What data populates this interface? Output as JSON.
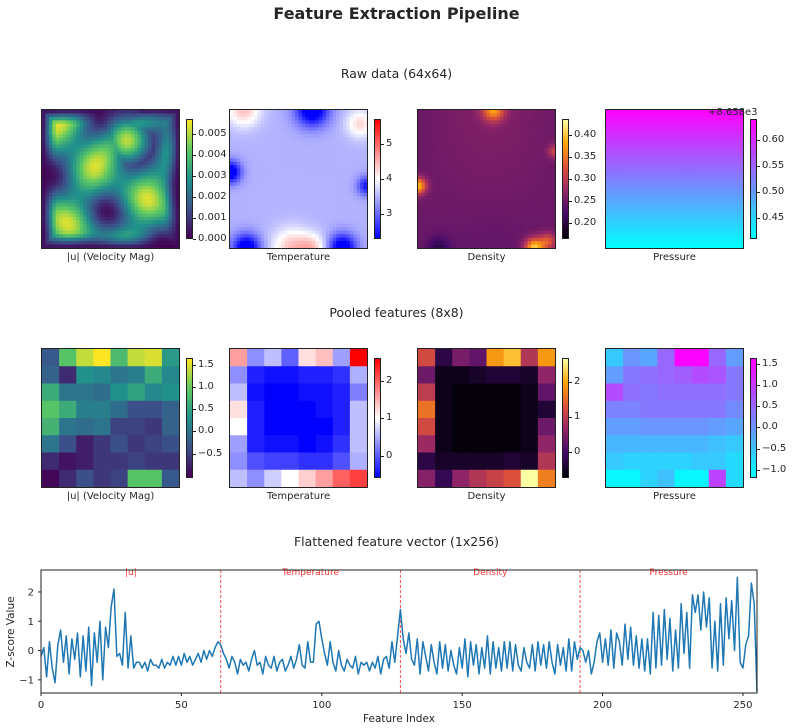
{
  "title": "Feature Extraction Pipeline",
  "section_titles": {
    "raw": "Raw data (64x64)",
    "pooled": "Pooled features (8x8)",
    "flat": "Flattened feature vector (1x256)"
  },
  "colors": {
    "viridis": [
      "#440154",
      "#3b528b",
      "#21918c",
      "#5ec962",
      "#fde725"
    ],
    "bwr": [
      "#0000ff",
      "#ffffff",
      "#ff0000"
    ],
    "inferno": [
      "#000004",
      "#420a68",
      "#932667",
      "#dd513a",
      "#fca50a",
      "#fcffa4"
    ],
    "cool": [
      "#00ffff",
      "#ff00ff"
    ],
    "line": "#1f77b4",
    "divider": "#ff4d4d"
  },
  "chart_data": [
    {
      "type": "heatmap",
      "row": "raw",
      "caption": "|u| (Velocity Mag)",
      "colormap": "viridis",
      "range": [
        0,
        0.0057
      ],
      "colorbar_ticks": [
        0.0,
        0.001,
        0.002,
        0.003,
        0.004,
        0.005
      ],
      "colorbar_tick_labels": [
        "0.000",
        "0.001",
        "0.002",
        "0.003",
        "0.004",
        "0.005"
      ]
    },
    {
      "type": "heatmap",
      "row": "raw",
      "caption": "Temperature",
      "colormap": "bwr",
      "range": [
        2.3,
        5.7
      ],
      "colorbar_ticks": [
        3,
        4,
        5
      ],
      "colorbar_tick_labels": [
        "3",
        "4",
        "5"
      ]
    },
    {
      "type": "heatmap",
      "row": "raw",
      "caption": "Density",
      "colormap": "inferno",
      "range": [
        0.165,
        0.435
      ],
      "colorbar_ticks": [
        0.2,
        0.25,
        0.3,
        0.35,
        0.4
      ],
      "colorbar_tick_labels": [
        "0.20",
        "0.25",
        "0.30",
        "0.35",
        "0.40"
      ]
    },
    {
      "type": "heatmap",
      "row": "raw",
      "caption": "Pressure",
      "colormap": "cool",
      "range": [
        0.41,
        0.64
      ],
      "colorbar_ticks": [
        0.45,
        0.5,
        0.55,
        0.6
      ],
      "colorbar_tick_labels": [
        "0.45",
        "0.50",
        "0.55",
        "0.60"
      ],
      "colorbar_offset": "+8.658e3"
    },
    {
      "type": "heatmap",
      "row": "pooled",
      "caption": "|u| (Velocity Mag)",
      "colormap": "viridis",
      "range": [
        -1.05,
        1.65
      ],
      "colorbar_ticks": [
        -0.5,
        0.0,
        0.5,
        1.0,
        1.5
      ],
      "colorbar_tick_labels": [
        "−0.5",
        "0.0",
        "0.5",
        "1.0",
        "1.5"
      ],
      "values": [
        [
          -0.3,
          0.9,
          1.4,
          1.7,
          0.8,
          1.4,
          1.5,
          0.4
        ],
        [
          -0.2,
          -0.7,
          0.3,
          0.2,
          0.0,
          0.1,
          0.6,
          0.2
        ],
        [
          0.6,
          0.0,
          0.0,
          -0.1,
          0.3,
          0.5,
          0.2,
          0.3
        ],
        [
          0.9,
          0.6,
          0.1,
          0.1,
          -0.1,
          -0.4,
          -0.4,
          -0.2
        ],
        [
          0.7,
          0.0,
          -0.1,
          0.0,
          -0.5,
          -0.5,
          -0.6,
          -0.2
        ],
        [
          0.0,
          -0.4,
          -0.8,
          -0.6,
          -0.4,
          -0.6,
          -0.5,
          -0.4
        ],
        [
          -0.7,
          -0.9,
          -0.8,
          -0.6,
          -0.6,
          -0.5,
          -0.6,
          -0.6
        ],
        [
          -1.0,
          -0.7,
          -0.4,
          -0.6,
          -0.5,
          0.9,
          0.9,
          -0.3
        ]
      ]
    },
    {
      "type": "heatmap",
      "row": "pooled",
      "caption": "Temperature",
      "colormap": "bwr",
      "range": [
        -0.6,
        2.6
      ],
      "colorbar_ticks": [
        0,
        1,
        2
      ],
      "colorbar_tick_labels": [
        "0",
        "1",
        "2"
      ],
      "values": [
        [
          1.6,
          0.3,
          0.6,
          0.0,
          1.2,
          1.4,
          0.4,
          2.6
        ],
        [
          0.3,
          -0.4,
          -0.5,
          -0.5,
          -0.4,
          -0.4,
          -0.3,
          0.5
        ],
        [
          0.6,
          -0.5,
          -0.6,
          -0.6,
          -0.5,
          -0.5,
          -0.4,
          0.2
        ],
        [
          1.2,
          -0.4,
          -0.6,
          -0.6,
          -0.6,
          -0.5,
          -0.4,
          0.6
        ],
        [
          1.0,
          -0.4,
          -0.6,
          -0.6,
          -0.6,
          -0.6,
          -0.4,
          0.6
        ],
        [
          0.4,
          -0.4,
          -0.5,
          -0.5,
          -0.6,
          -0.5,
          -0.3,
          0.6
        ],
        [
          0.3,
          -0.1,
          -0.2,
          -0.2,
          -0.3,
          -0.3,
          -0.1,
          0.5
        ],
        [
          0.6,
          0.3,
          0.7,
          1.0,
          1.3,
          1.6,
          2.0,
          2.2
        ]
      ]
    },
    {
      "type": "heatmap",
      "row": "pooled",
      "caption": "Density",
      "colormap": "inferno",
      "range": [
        -0.75,
        2.7
      ],
      "colorbar_ticks": [
        0,
        1,
        2
      ],
      "colorbar_tick_labels": [
        "0",
        "1",
        "2"
      ],
      "values": [
        [
          1.2,
          -0.3,
          0.4,
          0.2,
          1.9,
          2.2,
          0.9,
          1.9
        ],
        [
          0.3,
          -0.6,
          -0.6,
          -0.5,
          -0.4,
          -0.4,
          -0.5,
          0.6
        ],
        [
          1.0,
          -0.6,
          -0.7,
          -0.7,
          -0.7,
          -0.7,
          -0.6,
          0.2
        ],
        [
          1.6,
          -0.6,
          -0.7,
          -0.7,
          -0.7,
          -0.7,
          -0.6,
          -0.4
        ],
        [
          1.2,
          -0.6,
          -0.7,
          -0.7,
          -0.7,
          -0.7,
          -0.6,
          0.3
        ],
        [
          0.7,
          -0.6,
          -0.7,
          -0.7,
          -0.7,
          -0.7,
          -0.6,
          0.6
        ],
        [
          -0.3,
          -0.5,
          -0.5,
          -0.5,
          -0.5,
          -0.4,
          -0.5,
          0.9
        ],
        [
          0.5,
          -0.2,
          0.6,
          0.9,
          1.1,
          1.3,
          2.7,
          1.7
        ]
      ]
    },
    {
      "type": "heatmap",
      "row": "pooled",
      "caption": "Pressure",
      "colormap": "cool",
      "range": [
        -1.2,
        1.65
      ],
      "colorbar_ticks": [
        -1.0,
        -0.5,
        0.0,
        0.5,
        1.0,
        1.5
      ],
      "colorbar_tick_labels": [
        "−1.0",
        "−0.5",
        "0.0",
        "0.5",
        "1.0",
        "1.5"
      ],
      "values": [
        [
          -0.6,
          0.0,
          -0.2,
          0.5,
          1.6,
          1.6,
          0.5,
          -0.1
        ],
        [
          -0.1,
          0.3,
          0.4,
          0.5,
          0.6,
          0.8,
          0.7,
          0.3
        ],
        [
          0.8,
          0.4,
          0.3,
          0.4,
          0.4,
          0.4,
          0.4,
          0.3
        ],
        [
          0.2,
          0.2,
          0.3,
          0.3,
          0.3,
          0.3,
          0.3,
          0.1
        ],
        [
          -0.1,
          -0.1,
          0.0,
          0.0,
          0.0,
          0.0,
          -0.1,
          -0.2
        ],
        [
          -0.4,
          -0.4,
          -0.4,
          -0.4,
          -0.4,
          -0.4,
          -0.5,
          -0.6
        ],
        [
          -0.6,
          -0.7,
          -0.7,
          -0.7,
          -0.7,
          -0.6,
          -0.6,
          -0.8
        ],
        [
          -1.1,
          -1.1,
          -0.7,
          -0.5,
          -1.1,
          -1.1,
          0.9,
          -0.8
        ]
      ]
    },
    {
      "type": "line",
      "row": "flat",
      "xlabel": "Feature Index",
      "ylabel": "Z-score Value",
      "xlim": [
        0,
        255
      ],
      "ylim": [
        -1.45,
        2.75
      ],
      "xticks": [
        0,
        50,
        100,
        150,
        200,
        250
      ],
      "yticks": [
        -1,
        0,
        1,
        2
      ],
      "ytick_labels": [
        "−1",
        "0",
        "1",
        "2"
      ],
      "segment_boundaries": [
        64,
        128,
        192
      ],
      "segment_labels": [
        "|u|",
        "Temperature",
        "Density",
        "Pressure"
      ],
      "grid": false,
      "series": [
        {
          "values": [
            -0.2,
            0.1,
            -0.9,
            0.3,
            -0.6,
            -1.1,
            0.2,
            0.7,
            -0.4,
            0.5,
            -0.8,
            0.4,
            -0.3,
            0.6,
            -0.9,
            0.5,
            -0.7,
            0.8,
            -1.2,
            0.6,
            -0.4,
            1.0,
            -1.0,
            0.8,
            0.1,
            1.5,
            2.1,
            -0.2,
            -0.1,
            -0.5,
            1.3,
            -0.6,
            0.5,
            -0.6,
            -0.4,
            -0.4,
            -0.6,
            -0.4,
            -0.7,
            -0.3,
            -0.5,
            -0.5,
            -0.6,
            -0.3,
            -0.6,
            -0.4,
            -0.5,
            -0.2,
            -0.5,
            -0.2,
            -0.5,
            -0.1,
            -0.4,
            -0.2,
            -0.5,
            -0.3,
            -0.1,
            -0.4,
            0.0,
            -0.3,
            0.0,
            -0.2,
            0.1,
            0.3,
            0.2,
            -0.1,
            -0.3,
            -0.6,
            -0.2,
            -0.4,
            -0.8,
            -0.3,
            -0.5,
            -0.4,
            -0.7,
            -0.3,
            0.0,
            -0.5,
            -0.4,
            -0.8,
            -0.2,
            -0.5,
            -0.6,
            -0.2,
            -0.7,
            -0.4,
            -0.3,
            -0.7,
            -0.5,
            -0.2,
            -0.6,
            -0.3,
            0.2,
            -0.5,
            -0.6,
            0.3,
            -0.4,
            -0.4,
            0.9,
            1.0,
            0.4,
            -0.1,
            -0.5,
            0.3,
            -0.4,
            -0.7,
            0.0,
            -0.5,
            -0.7,
            -0.3,
            -0.5,
            -0.6,
            -0.2,
            -0.8,
            -0.4,
            -0.5,
            -0.4,
            -0.7,
            -0.4,
            -0.6,
            -0.2,
            -0.8,
            -0.3,
            -0.2,
            -0.6,
            0.3,
            -0.4,
            0.5,
            1.4,
            0.4,
            -0.1,
            0.6,
            -0.3,
            -0.5,
            0.4,
            -0.8,
            0.3,
            -0.2,
            -0.7,
            0.2,
            -0.4,
            -0.8,
            0.3,
            -0.6,
            0.2,
            -0.7,
            0.0,
            -0.5,
            -0.8,
            0.1,
            -0.6,
            0.4,
            -0.9,
            0.3,
            -0.5,
            0.2,
            -0.8,
            0.1,
            -0.6,
            0.5,
            -0.8,
            0.3,
            -0.6,
            0.1,
            -0.7,
            0.3,
            -0.6,
            0.3,
            -0.7,
            0.2,
            -0.5,
            -0.7,
            0.1,
            -0.4,
            -0.6,
            0.2,
            -0.7,
            0.3,
            -0.5,
            0.2,
            -0.6,
            0.3,
            -0.4,
            -0.8,
            0.2,
            -0.5,
            0.1,
            -0.7,
            0.4,
            -0.7,
            0.3,
            -0.3,
            0.1,
            0.0,
            -0.4,
            0.0,
            -0.8,
            -0.4,
            0.3,
            0.6,
            -0.4,
            0.4,
            -0.5,
            0.7,
            -0.6,
            0.6,
            0.3,
            -0.5,
            0.9,
            -0.3,
            0.8,
            -0.5,
            0.5,
            -0.6,
            0.4,
            -0.7,
            0.4,
            -0.8,
            1.3,
            -0.6,
            1.2,
            -0.5,
            1.4,
            -0.3,
            1.1,
            -0.7,
            0.7,
            -0.6,
            1.6,
            -0.1,
            1.3,
            -0.6,
            1.9,
            1.3,
            1.9,
            0.7,
            2.0,
            0.8,
            1.8,
            -0.6,
            1.0,
            -0.7,
            1.6,
            -0.5,
            1.8,
            0.4,
            1.7,
            0.0,
            2.5,
            -0.4,
            -0.6,
            0.2,
            0.5,
            2.3,
            1.6,
            -1.4
          ]
        }
      ]
    }
  ]
}
